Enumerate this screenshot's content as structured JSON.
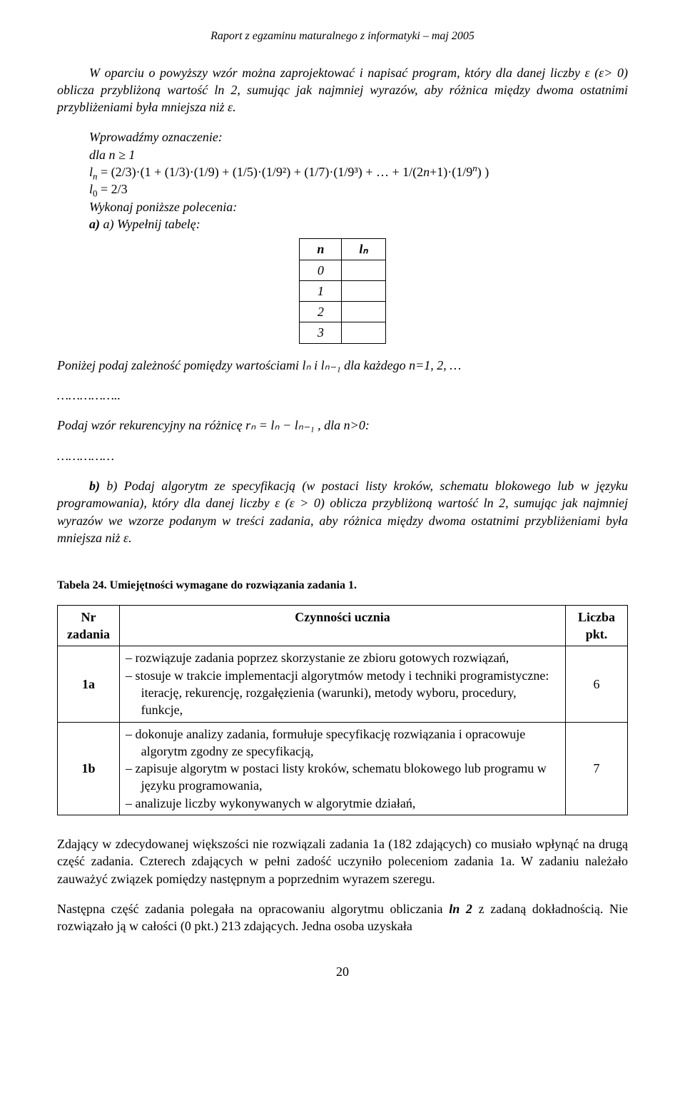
{
  "header": "Raport z egzaminu maturalnego z informatyki – maj 2005",
  "p1": "W oparciu o powyższy wzór można zaprojektować i napisać program, który dla danej liczby ε (ε> 0) oblicza przybliżoną wartość ln 2, sumując jak najmniej wyrazów, aby różnica między dwoma ostatnimi przybliżeniami była mniejsza niż ε.",
  "p2": "Wprowadźmy oznaczenie:",
  "p3": "dla n ≥ 1",
  "p4": "Wykonaj poniższe polecenia:",
  "p5": "a) Wypełnij tabelę:",
  "tn": {
    "head_n": "n",
    "head_l": "lₙ",
    "rows": [
      "0",
      "1",
      "2",
      "3"
    ]
  },
  "p6a": "Poniżej podaj zależność pomiędzy wartościami lₙ i lₙ₋₁ dla każdego n=1, 2, …",
  "p6b": "……………..",
  "p7": "Podaj wzór rekurencyjny na różnicę rₙ = lₙ − lₙ₋₁ ,  dla n>0:",
  "p7b": "……………",
  "p8a": "b) Podaj algorytm ze specyfikacją (w postaci listy kroków, schematu blokowego lub w języku programowania), który dla danej liczby ε (ε > 0) oblicza przybliżoną wartość ln 2, sumując jak najmniej wyrazów we wzorze podanym w treści zadania, aby różnica między dwoma ostatnimi przybliżeniami była mniejsza niż ε.",
  "t24_caption": "Tabela 24. Umiejętności wymagane do rozwiązania zadania 1.",
  "t24": {
    "head_nr": "Nr zadania",
    "head_cz": "Czynności ucznia",
    "head_pkt": "Liczba pkt.",
    "rows": [
      {
        "id": "1a",
        "items": [
          "rozwiązuje zadania poprzez skorzystanie ze zbioru gotowych rozwiązań,",
          "stosuje w trakcie implementacji algorytmów metody i techniki programistyczne: iterację, rekurencję, rozgałęzienia (warunki), metody wyboru, procedury, funkcje,"
        ],
        "pkt": "6"
      },
      {
        "id": "1b",
        "items": [
          "dokonuje analizy zadania, formułuje specyfikację rozwiązania i opracowuje algorytm zgodny ze specyfikacją,",
          "zapisuje algorytm w postaci listy kroków, schematu blokowego lub programu w języku programowania,",
          "analizuje liczby wykonywanych w algorytmie działań,"
        ],
        "pkt": "7"
      }
    ]
  },
  "p9": "Zdający w zdecydowanej większości nie rozwiązali zadania 1a (182 zdających) co musiało wpłynąć na drugą część zadania. Czterech zdających w pełni zadość uczyniło poleceniom zadania 1a. W zadaniu należało zauważyć związek pomiędzy następnym a poprzednim wyrazem szeregu.",
  "p10": "Następna część zadania polegała na opracowaniu algorytmu obliczania ln 2 z zadaną dokładnością. Nie rozwiązało ją w całości (0 pkt.) 213 zdających. Jedna osoba uzyskała",
  "pagenum": "20",
  "ln_label_b": "ln 2"
}
